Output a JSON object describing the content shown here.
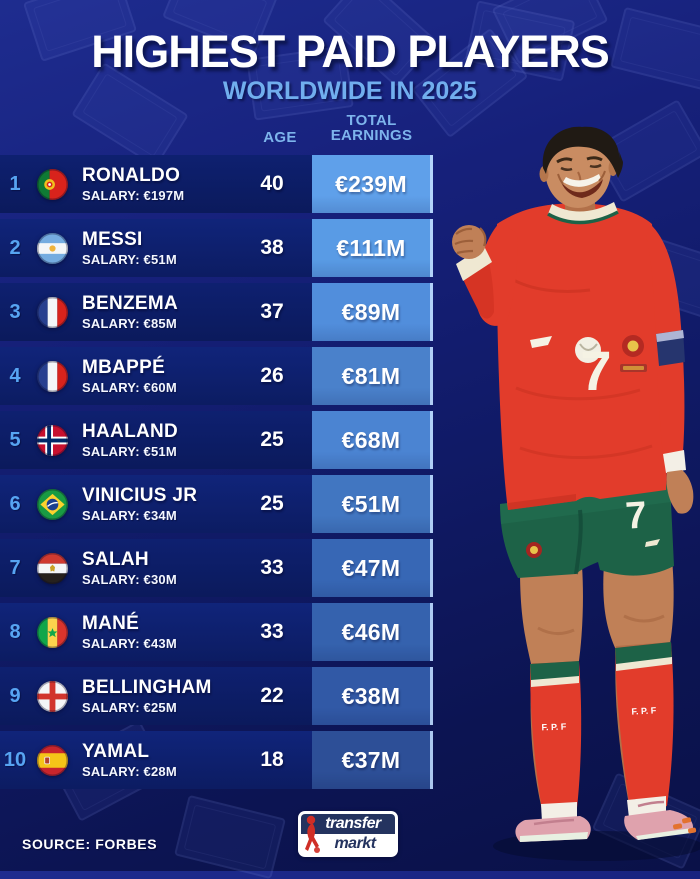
{
  "header": {
    "title": "HIGHEST PAID PLAYERS",
    "subtitle": "WORLDWIDE IN 2025"
  },
  "columns": {
    "age": "AGE",
    "earnings_line1": "TOTAL",
    "earnings_line2": "EARNINGS"
  },
  "players": [
    {
      "rank": "1",
      "name": "RONALDO",
      "salary": "SALARY: €197M",
      "age": "40",
      "earnings": "€239M",
      "flag": "portugal",
      "cell_color": "#5FA0EA"
    },
    {
      "rank": "2",
      "name": "MESSI",
      "salary": "SALARY: €51M",
      "age": "38",
      "earnings": "€111M",
      "flag": "argentina",
      "cell_color": "#599BE5"
    },
    {
      "rank": "3",
      "name": "BENZEMA",
      "salary": "SALARY: €85M",
      "age": "37",
      "earnings": "€89M",
      "flag": "france",
      "cell_color": "#518EDC"
    },
    {
      "rank": "4",
      "name": "MBAPPÉ",
      "salary": "SALARY: €60M",
      "age": "26",
      "earnings": "€81M",
      "flag": "france",
      "cell_color": "#4A81CB"
    },
    {
      "rank": "5",
      "name": "HAALAND",
      "salary": "SALARY: €51M",
      "age": "25",
      "earnings": "€68M",
      "flag": "norway",
      "cell_color": "#4B84D2"
    },
    {
      "rank": "6",
      "name": "VINICIUS JR",
      "salary": "SALARY: €34M",
      "age": "25",
      "earnings": "€51M",
      "flag": "brazil",
      "cell_color": "#4176C1"
    },
    {
      "rank": "7",
      "name": "SALAH",
      "salary": "SALARY: €30M",
      "age": "33",
      "earnings": "€47M",
      "flag": "egypt",
      "cell_color": "#3767B5"
    },
    {
      "rank": "8",
      "name": "MANÉ",
      "salary": "SALARY: €43M",
      "age": "33",
      "earnings": "€46M",
      "flag": "senegal",
      "cell_color": "#3562AE"
    },
    {
      "rank": "9",
      "name": "BELLINGHAM",
      "salary": "SALARY: €25M",
      "age": "22",
      "earnings": "€38M",
      "flag": "england",
      "cell_color": "#3159A6"
    },
    {
      "rank": "10",
      "name": "YAMAL",
      "salary": "SALARY: €28M",
      "age": "18",
      "earnings": "€37M",
      "flag": "spain",
      "cell_color": "#2D4F97"
    }
  ],
  "player_figure": {
    "jersey_number": "7",
    "shorts_number": "7",
    "sock_label": "F. P. F"
  },
  "footer": {
    "source": "SOURCE: FORBES",
    "logo_top": "transfer",
    "logo_bottom": "markt"
  },
  "colors": {
    "background": "#101a66",
    "row_background": "#0c1c64",
    "rank_accent": "#57A4F2",
    "header_accent": "#71aeee",
    "jersey_red": "#e23c2b",
    "shorts_green": "#1d6247"
  }
}
